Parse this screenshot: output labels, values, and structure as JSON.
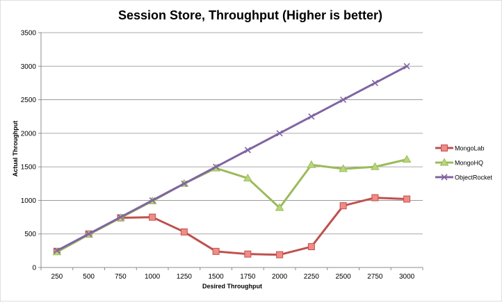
{
  "chart_data": {
    "type": "line",
    "title": "Session Store, Throughput (Higher is better)",
    "xlabel": "Desired Throughput",
    "ylabel": "Actual Throughput",
    "categories": [
      "250",
      "500",
      "750",
      "1000",
      "1250",
      "1500",
      "1750",
      "2000",
      "2250",
      "2500",
      "2750",
      "3000"
    ],
    "ylim": [
      0,
      3500
    ],
    "yticks": [
      "0",
      "500",
      "1000",
      "1500",
      "2000",
      "2500",
      "3000",
      "3500"
    ],
    "grid": true,
    "legend_position": "right",
    "series": [
      {
        "name": "MongoLab",
        "color": "#c0504d",
        "fill": "#f08b86",
        "marker": "square",
        "values": [
          240,
          500,
          740,
          750,
          530,
          240,
          200,
          190,
          310,
          920,
          1040,
          1020
        ]
      },
      {
        "name": "MongoHQ",
        "color": "#9bbb59",
        "fill": "#b8d67a",
        "marker": "triangle",
        "values": [
          230,
          490,
          740,
          990,
          1250,
          1480,
          1330,
          890,
          1530,
          1470,
          1500,
          1610
        ]
      },
      {
        "name": "ObjectRocket",
        "color": "#8064a2",
        "fill": "#8064a2",
        "marker": "x",
        "values": [
          250,
          500,
          750,
          1000,
          1250,
          1500,
          1750,
          2000,
          2250,
          2500,
          2750,
          3000
        ]
      }
    ]
  }
}
